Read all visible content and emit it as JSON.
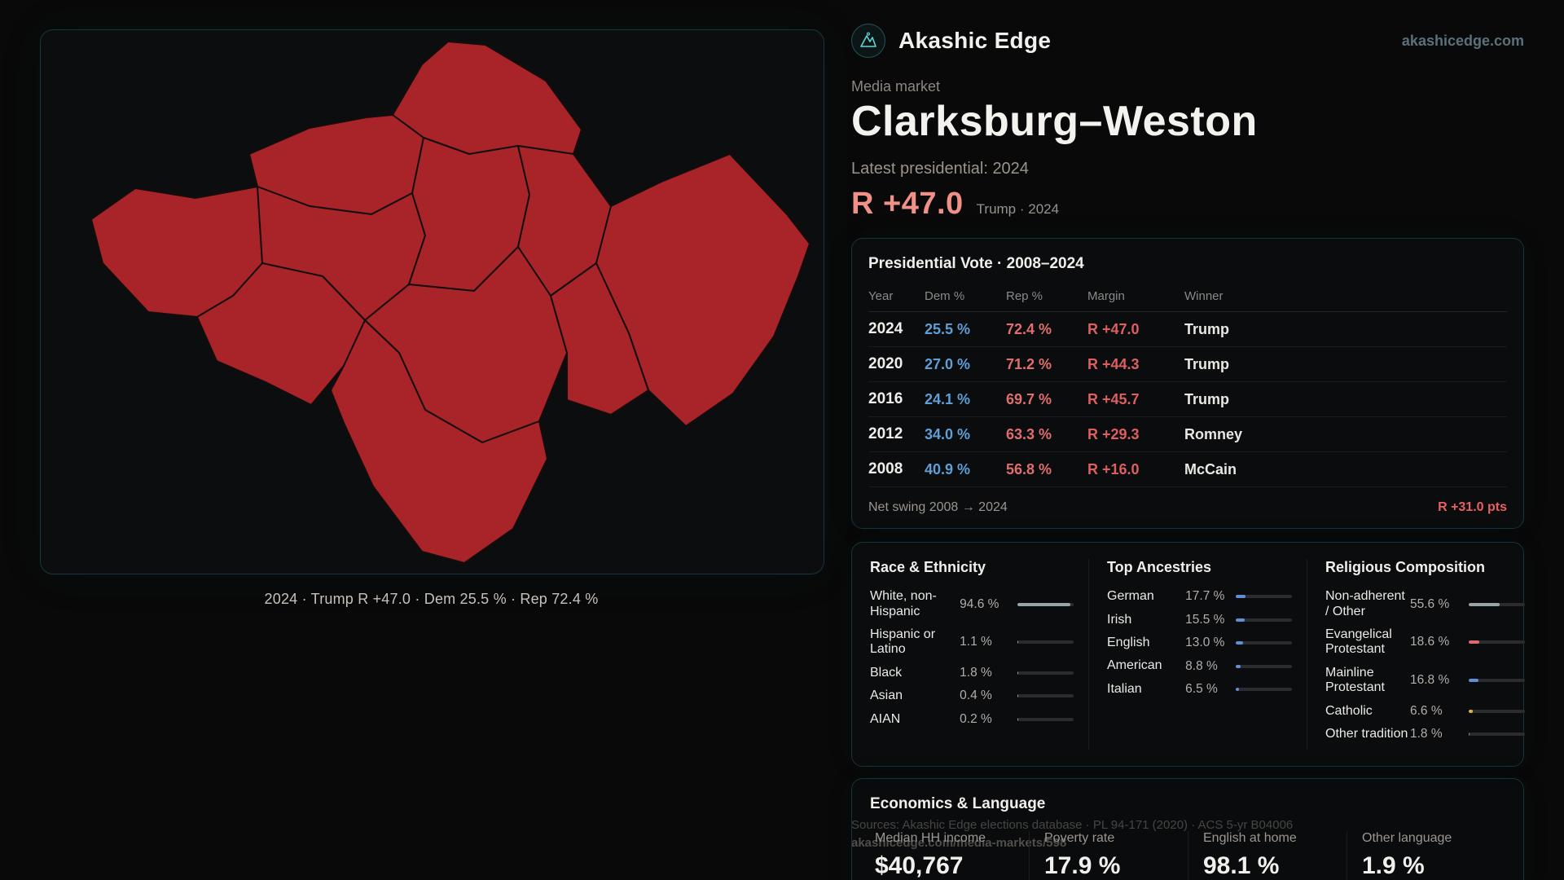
{
  "theme": {
    "page_bg": "#090909",
    "panel_border": "#17363e",
    "accent_teal": "#63d3d6",
    "map_fill": "#a92428",
    "dem_blue": "#5f9fd8",
    "rep_red": "#e06e6e",
    "headline_red": "#f09089"
  },
  "map": {
    "caption": "2024 · Trump R +47.0 · Dem 25.5 % · Rep 72.4 %"
  },
  "header": {
    "brand": "Akashic Edge",
    "site": "akashicedge.com"
  },
  "market": {
    "kicker": "Media market",
    "title": "Clarksburg–Weston",
    "latest_label": "Latest presidential: 2024",
    "headline_margin": "R +47.0",
    "headline_note": "Trump · 2024"
  },
  "presidential_vote": {
    "title": "Presidential Vote · 2008–2024",
    "columns": [
      "Year",
      "Dem %",
      "Rep %",
      "Margin",
      "Winner"
    ],
    "rows": [
      {
        "year": "2024",
        "dem": "25.5 %",
        "rep": "72.4 %",
        "margin": "R +47.0",
        "winner": "Trump"
      },
      {
        "year": "2020",
        "dem": "27.0 %",
        "rep": "71.2 %",
        "margin": "R +44.3",
        "winner": "Trump"
      },
      {
        "year": "2016",
        "dem": "24.1 %",
        "rep": "69.7 %",
        "margin": "R +45.7",
        "winner": "Trump"
      },
      {
        "year": "2012",
        "dem": "34.0 %",
        "rep": "63.3 %",
        "margin": "R +29.3",
        "winner": "Romney"
      },
      {
        "year": "2008",
        "dem": "40.9 %",
        "rep": "56.8 %",
        "margin": "R +16.0",
        "winner": "McCain"
      }
    ],
    "net_swing_label": "Net swing 2008 → 2024",
    "net_swing_value": "R +31.0 pts"
  },
  "demographics": {
    "race": {
      "title": "Race & Ethnicity",
      "rows": [
        {
          "label": "White, non-Hispanic",
          "value": "94.6 %",
          "pct": 94.6,
          "color": "#9aa3a8"
        },
        {
          "label": "Hispanic or Latino",
          "value": "1.1 %",
          "pct": 1.1,
          "color": "#9aa3a8"
        },
        {
          "label": "Black",
          "value": "1.8 %",
          "pct": 1.8,
          "color": "#9aa3a8"
        },
        {
          "label": "Asian",
          "value": "0.4 %",
          "pct": 0.4,
          "color": "#9aa3a8"
        },
        {
          "label": "AIAN",
          "value": "0.2 %",
          "pct": 0.2,
          "color": "#9aa3a8"
        }
      ]
    },
    "ancestries": {
      "title": "Top Ancestries",
      "rows": [
        {
          "label": "German",
          "value": "17.7 %",
          "pct": 17.7,
          "color": "#5f8fd6"
        },
        {
          "label": "Irish",
          "value": "15.5 %",
          "pct": 15.5,
          "color": "#5f8fd6"
        },
        {
          "label": "English",
          "value": "13.0 %",
          "pct": 13.0,
          "color": "#5f8fd6"
        },
        {
          "label": "American",
          "value": "8.8 %",
          "pct": 8.8,
          "color": "#5f8fd6"
        },
        {
          "label": "Italian",
          "value": "6.5 %",
          "pct": 6.5,
          "color": "#5f8fd6"
        }
      ]
    },
    "religion": {
      "title": "Religious Composition",
      "rows": [
        {
          "label": "Non-adherent / Other",
          "value": "55.6 %",
          "pct": 55.6,
          "color": "#9aa3a8"
        },
        {
          "label": "Evangelical Protestant",
          "value": "18.6 %",
          "pct": 18.6,
          "color": "#e0696e"
        },
        {
          "label": "Mainline Protestant",
          "value": "16.8 %",
          "pct": 16.8,
          "color": "#5f8fd6"
        },
        {
          "label": "Catholic",
          "value": "6.6 %",
          "pct": 6.6,
          "color": "#e3b23c"
        },
        {
          "label": "Other tradition",
          "value": "1.8 %",
          "pct": 1.8,
          "color": "#9aa3a8"
        }
      ]
    }
  },
  "economics": {
    "title": "Economics & Language",
    "stats": [
      {
        "label": "Median HH income",
        "value": "$40,767"
      },
      {
        "label": "Poverty rate",
        "value": "17.9 %"
      },
      {
        "label": "English at home",
        "value": "98.1 %"
      },
      {
        "label": "Other language",
        "value": "1.9 %"
      }
    ]
  },
  "footer": {
    "sources": "Sources: Akashic Edge elections database · PL 94-171 (2020) · ACS 5-yr B04006",
    "permalink": "akashicedge.com/media-markets/598"
  }
}
